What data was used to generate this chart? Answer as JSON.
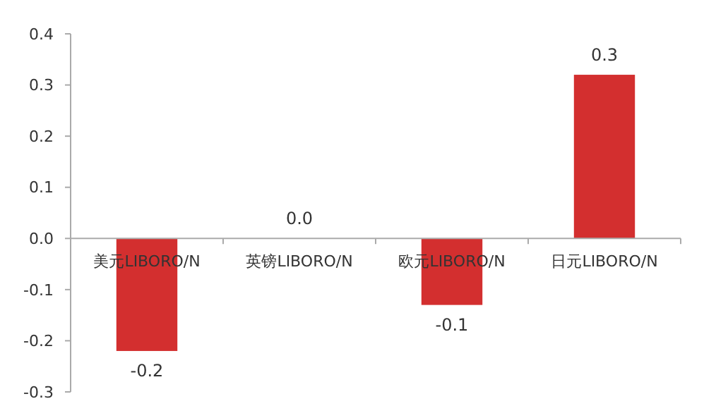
{
  "chart_data": {
    "type": "bar",
    "categories": [
      "美元LIBORO/N",
      "英镑LIBORO/N",
      "欧元LIBORO/N",
      "日元LIBORO/N"
    ],
    "values": [
      -0.22,
      0,
      -0.13,
      0.32
    ],
    "value_labels": [
      "-0.2",
      "0.0",
      "-0.1",
      "0.3"
    ],
    "color": "#d32f2f",
    "ylim": [
      -0.3,
      0.4
    ],
    "yticks": [
      {
        "value": -0.3,
        "label": "-0.3"
      },
      {
        "value": -0.2,
        "label": "-0.2"
      },
      {
        "value": -0.1,
        "label": "-0.1"
      },
      {
        "value": 0,
        "label": "0.0"
      },
      {
        "value": 0.1,
        "label": "0.1"
      },
      {
        "value": 0.2,
        "label": "0.2"
      },
      {
        "value": 0.3,
        "label": "0.3"
      },
      {
        "value": 0.4,
        "label": "0.4"
      }
    ],
    "grid": false
  }
}
